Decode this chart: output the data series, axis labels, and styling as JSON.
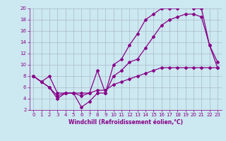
{
  "xlabel": "Windchill (Refroidissement éolien,°C)",
  "bg_color": "#cce8f0",
  "grid_color": "#aabbcc",
  "line_color": "#880088",
  "line1_x": [
    0,
    1,
    2,
    3,
    4,
    5,
    6,
    7,
    8,
    9,
    10,
    11,
    12,
    13,
    14,
    15,
    16,
    17,
    18,
    19,
    20,
    21,
    22,
    23
  ],
  "line1_y": [
    8,
    7,
    8,
    5,
    5,
    5,
    5,
    5,
    9,
    5,
    10,
    11,
    13.5,
    15.5,
    18,
    19,
    20,
    20,
    20,
    20.5,
    20,
    20,
    13.5,
    10.5
  ],
  "line2_x": [
    0,
    1,
    2,
    3,
    4,
    5,
    6,
    7,
    8,
    9,
    10,
    11,
    12,
    13,
    14,
    15,
    16,
    17,
    18,
    19,
    20,
    21,
    22,
    23
  ],
  "line2_y": [
    8,
    7,
    6,
    4,
    5,
    5,
    2.5,
    3.5,
    5,
    5,
    8,
    9,
    10.5,
    11,
    13,
    15,
    17,
    18,
    18.5,
    19,
    19,
    18.5,
    13.5,
    9.5
  ],
  "line3_x": [
    0,
    1,
    2,
    3,
    4,
    5,
    6,
    7,
    8,
    9,
    10,
    11,
    12,
    13,
    14,
    15,
    16,
    17,
    18,
    19,
    20,
    21,
    22,
    23
  ],
  "line3_y": [
    8,
    7,
    6,
    4.5,
    5,
    5,
    4.5,
    5,
    5.5,
    5.5,
    6.5,
    7,
    7.5,
    8,
    8.5,
    9,
    9.5,
    9.5,
    9.5,
    9.5,
    9.5,
    9.5,
    9.5,
    9.5
  ],
  "xlim": [
    -0.5,
    23.5
  ],
  "ylim": [
    2,
    20
  ],
  "xticks": [
    0,
    1,
    2,
    3,
    4,
    5,
    6,
    7,
    8,
    9,
    10,
    11,
    12,
    13,
    14,
    15,
    16,
    17,
    18,
    19,
    20,
    21,
    22,
    23
  ],
  "yticks": [
    2,
    4,
    6,
    8,
    10,
    12,
    14,
    16,
    18,
    20
  ],
  "marker": "D",
  "markersize": 2.0,
  "linewidth": 0.9,
  "tick_fontsize": 5.0,
  "xlabel_fontsize": 5.5
}
